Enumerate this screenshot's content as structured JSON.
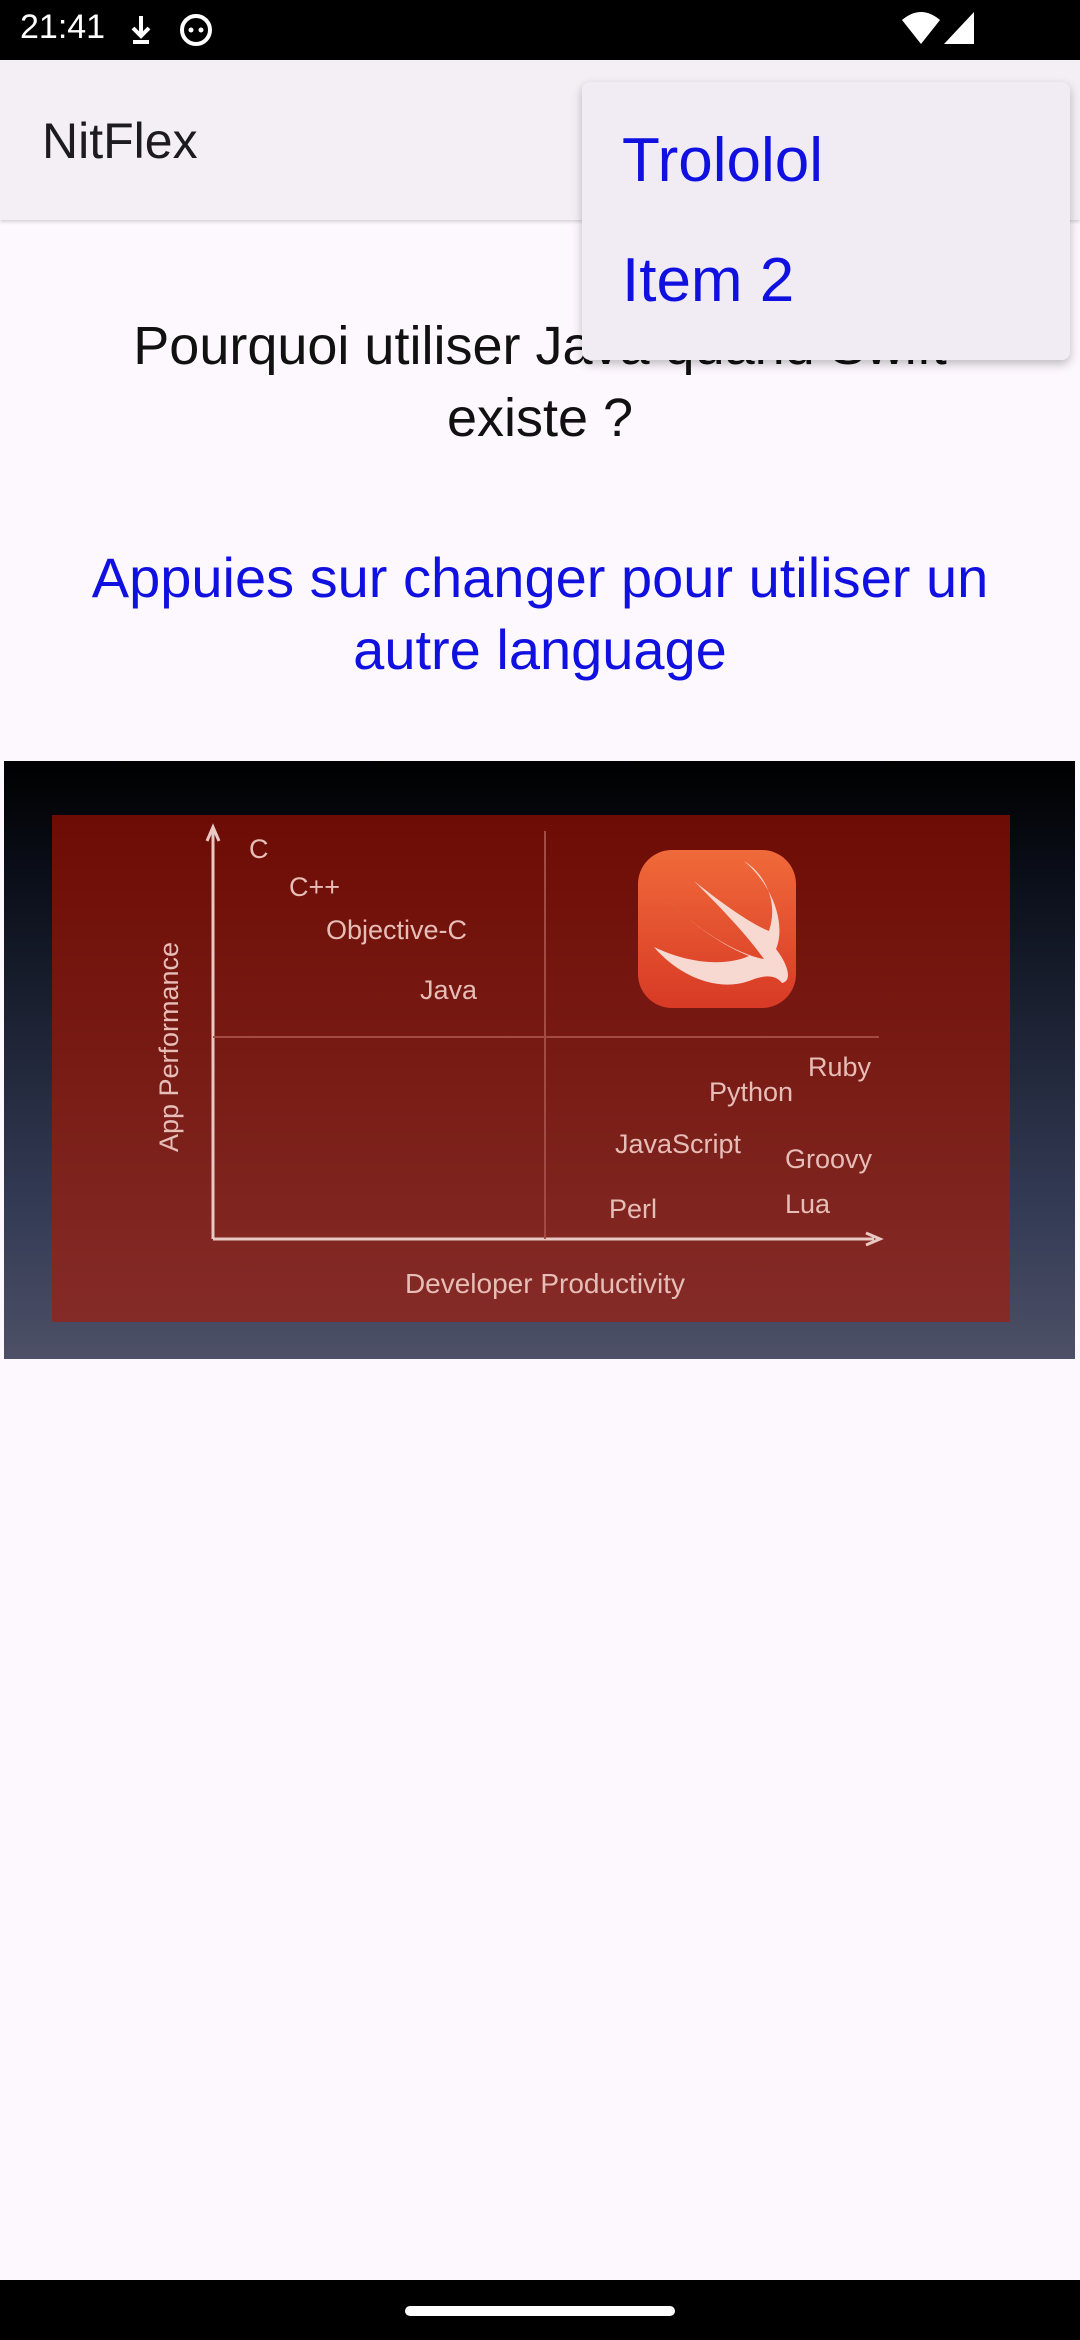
{
  "status_bar": {
    "time": "21:41"
  },
  "app_bar": {
    "title": "NitFlex"
  },
  "content": {
    "question": "Pourquoi utiliser Java quand Swift existe ?",
    "hint": "Appuies sur changer pour utiliser un autre language"
  },
  "slide": {
    "ylabel": "App Performance",
    "xlabel": "Developer Productivity",
    "languages": [
      "C",
      "C++",
      "Objective-C",
      "Java",
      "Ruby",
      "Python",
      "JavaScript",
      "Groovy",
      "Perl",
      "Lua"
    ],
    "logo_icon": "swift-icon",
    "colors": {
      "panel_top": "#6d0c04",
      "panel_bottom": "#852b27",
      "logo": "#e2432d"
    }
  },
  "overflow_menu": {
    "items": [
      {
        "label": "Trololol"
      },
      {
        "label": "Item 2"
      }
    ]
  }
}
